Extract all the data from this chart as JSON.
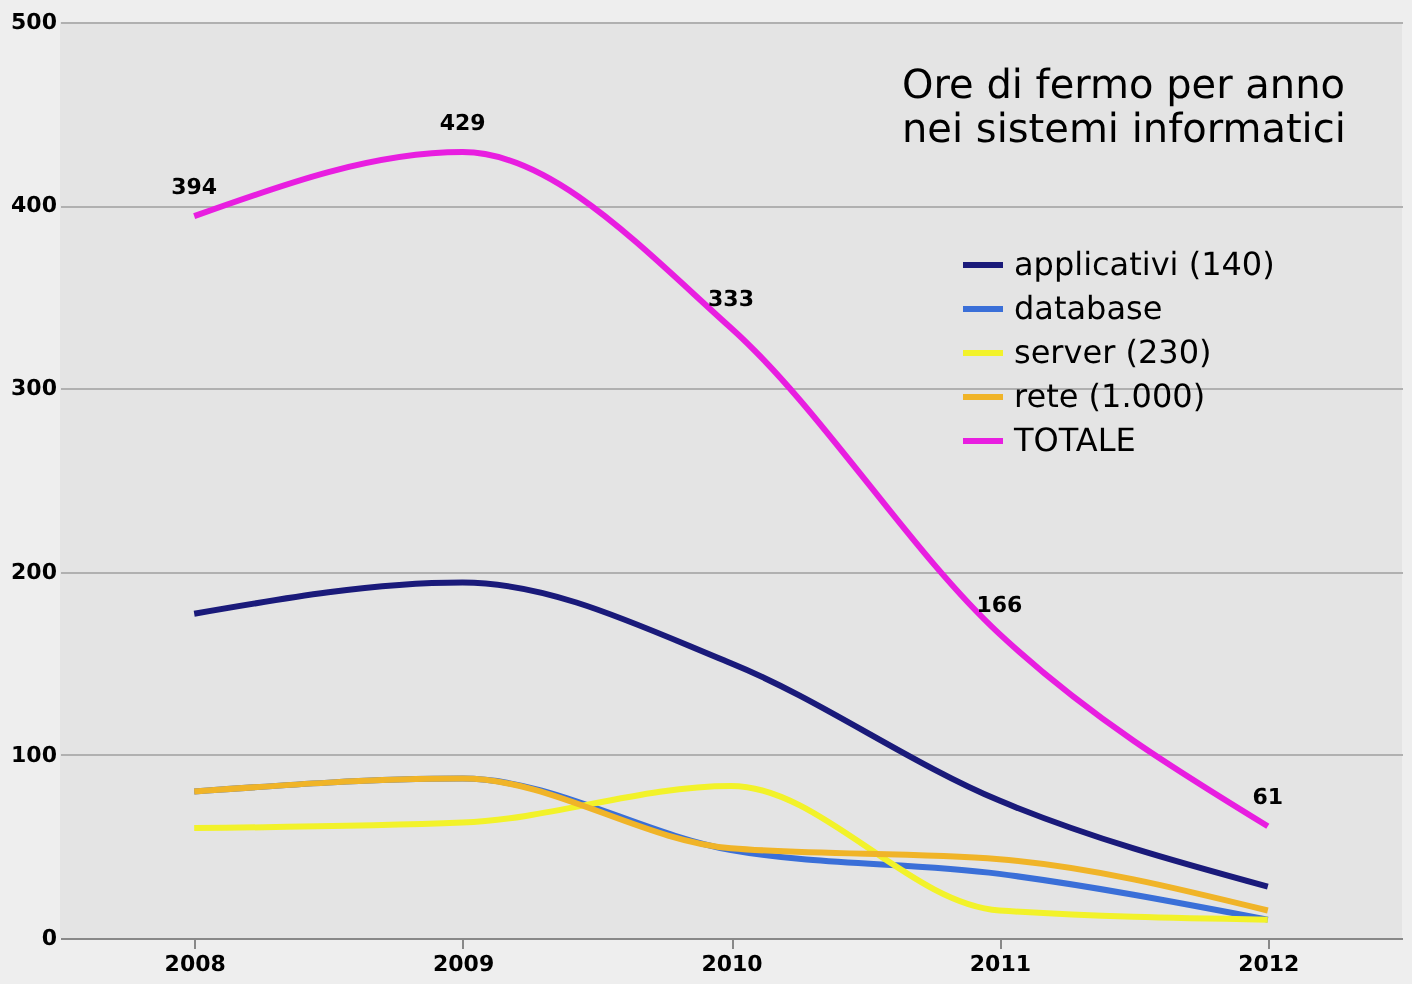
{
  "chart_data": {
    "type": "line",
    "title": "Ore di fermo per anno\nnei sistemi informatici",
    "categories": [
      "2008",
      "2009",
      "2010",
      "2011",
      "2012"
    ],
    "series": [
      {
        "name": "applicativi (140)",
        "color": "#1a1a7a",
        "values": [
          177,
          194,
          150,
          75,
          28
        ]
      },
      {
        "name": "database",
        "color": "#3a6fd8",
        "values": [
          80,
          87,
          48,
          35,
          10
        ]
      },
      {
        "name": "server (230)",
        "color": "#f2f22a",
        "values": [
          60,
          63,
          83,
          15,
          10
        ]
      },
      {
        "name": "rete (1.000)",
        "color": "#f0b428",
        "values": [
          80,
          87,
          49,
          43,
          15
        ]
      },
      {
        "name": "TOTALE",
        "color": "#e81ee0",
        "values": [
          394,
          429,
          333,
          166,
          61
        ],
        "value_labels": [
          "394",
          "429",
          "333",
          "166",
          "61"
        ]
      }
    ],
    "ylim": [
      0,
      500
    ],
    "yticks": [
      0,
      100,
      200,
      300,
      400,
      500
    ],
    "grid": "y",
    "legend": "right",
    "marker": "none",
    "line_style": "solid"
  }
}
